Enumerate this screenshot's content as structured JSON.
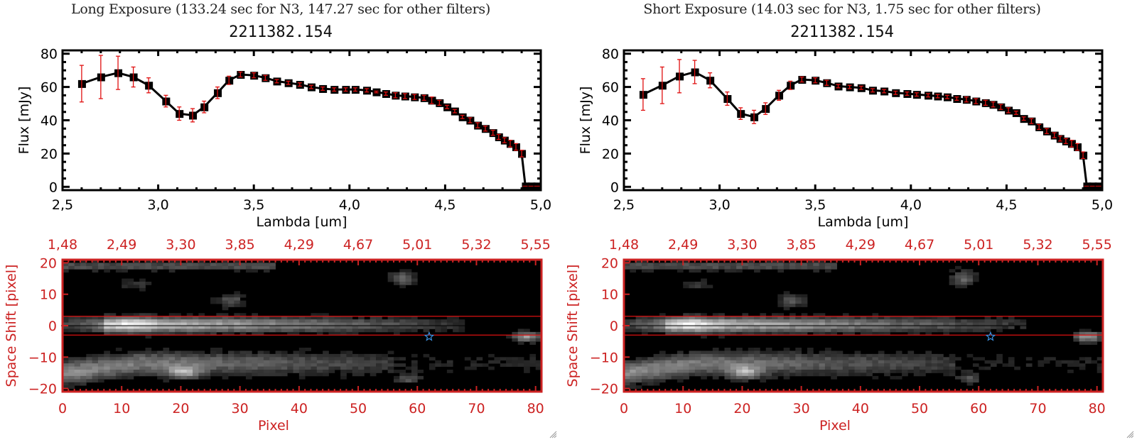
{
  "chart_data": [
    {
      "type": "line",
      "panel": "long",
      "title": "Long Exposure (133.24 sec for N3, 147.27 sec for other filters)",
      "subtitle": "2211382.154",
      "xlabel": "Lambda [um]",
      "ylabel": "Flux [mJy]",
      "xlim": [
        2.5,
        5.0
      ],
      "ylim": [
        -2,
        82
      ],
      "xticks": [
        "2.5",
        "3.0",
        "3.5",
        "4.0",
        "4.5",
        "5.0"
      ],
      "xtick_values": [
        2.5,
        3.0,
        3.5,
        4.0,
        4.5,
        5.0
      ],
      "yticks": [
        "0",
        "20",
        "40",
        "60",
        "80"
      ],
      "ytick_values": [
        0,
        20,
        40,
        60,
        80
      ],
      "series": [
        {
          "name": "flux",
          "x": [
            2.6,
            2.7,
            2.79,
            2.87,
            2.95,
            3.04,
            3.11,
            3.18,
            3.24,
            3.31,
            3.37,
            3.43,
            3.5,
            3.56,
            3.62,
            3.68,
            3.74,
            3.8,
            3.86,
            3.92,
            3.98,
            4.03,
            4.09,
            4.14,
            4.19,
            4.24,
            4.29,
            4.34,
            4.39,
            4.43,
            4.47,
            4.51,
            4.55,
            4.59,
            4.63,
            4.67,
            4.71,
            4.75,
            4.78,
            4.81,
            4.84,
            4.87,
            4.9,
            4.92,
            4.95,
            4.98
          ],
          "y": [
            62,
            66,
            68.5,
            66,
            61,
            51.5,
            44,
            43,
            48,
            56.5,
            64,
            67.5,
            67,
            65.5,
            63.5,
            62.5,
            61.5,
            60,
            59,
            58.5,
            58.5,
            58.5,
            58,
            57,
            56,
            55,
            54.5,
            54,
            53.5,
            52,
            50.5,
            48,
            45.5,
            42,
            40,
            37,
            35,
            32.5,
            30,
            28,
            26,
            24,
            20,
            0,
            0,
            0
          ],
          "yerr": [
            11,
            13,
            10,
            6,
            4.5,
            3.5,
            4,
            4,
            3.5,
            3.5,
            2.5,
            1.5,
            1.5,
            1.5,
            1,
            1,
            1,
            1,
            1,
            1,
            1,
            1,
            1,
            0.5,
            1,
            1.5,
            1.5,
            1.5,
            1.5,
            2,
            1.5,
            1,
            1,
            1,
            1.5,
            1.5,
            1.5,
            1.5,
            1.5,
            1.5,
            2,
            2,
            2,
            0,
            0,
            0
          ]
        }
      ],
      "image": {
        "title_top_ticks": [
          "1.48",
          "2.49",
          "3.30",
          "3.85",
          "4.29",
          "4.67",
          "5.01",
          "5.32",
          "5.55"
        ],
        "xlabel": "Pixel",
        "ylabel": "Space Shift [pixel]",
        "xlim": [
          0,
          81
        ],
        "ylim": [
          -21,
          21
        ],
        "xticks": [
          "0",
          "10",
          "20",
          "30",
          "40",
          "50",
          "60",
          "70",
          "80"
        ],
        "xtick_values": [
          0,
          10,
          20,
          30,
          40,
          50,
          60,
          70,
          80
        ],
        "yticks": [
          "20",
          "10",
          "0",
          "-10",
          "-20"
        ],
        "ytick_values": [
          20,
          10,
          0,
          -10,
          -20
        ],
        "aperture": [
          -3,
          3
        ],
        "star": [
          62,
          -3.5
        ]
      }
    },
    {
      "type": "line",
      "panel": "short",
      "title": "Short Exposure (14.03 sec for N3, 1.75 sec for other filters)",
      "subtitle": "2211382.154",
      "xlabel": "Lambda [um]",
      "ylabel": "Flux [mJy]",
      "xlim": [
        2.5,
        5.0
      ],
      "ylim": [
        -2,
        82
      ],
      "xticks": [
        "2.5",
        "3.0",
        "3.5",
        "4.0",
        "4.5",
        "5.0"
      ],
      "xtick_values": [
        2.5,
        3.0,
        3.5,
        4.0,
        4.5,
        5.0
      ],
      "yticks": [
        "0",
        "20",
        "40",
        "60",
        "80"
      ],
      "ytick_values": [
        0,
        20,
        40,
        60,
        80
      ],
      "series": [
        {
          "name": "flux",
          "x": [
            2.6,
            2.7,
            2.79,
            2.87,
            2.95,
            3.04,
            3.11,
            3.18,
            3.24,
            3.31,
            3.37,
            3.43,
            3.5,
            3.56,
            3.62,
            3.68,
            3.74,
            3.8,
            3.86,
            3.92,
            3.98,
            4.03,
            4.09,
            4.14,
            4.19,
            4.24,
            4.29,
            4.34,
            4.39,
            4.43,
            4.47,
            4.51,
            4.55,
            4.59,
            4.63,
            4.67,
            4.71,
            4.75,
            4.78,
            4.81,
            4.84,
            4.87,
            4.9,
            4.92,
            4.95,
            4.98
          ],
          "y": [
            55.5,
            61,
            66.5,
            69,
            64,
            53,
            44,
            42,
            47,
            55,
            61,
            64.5,
            64,
            62.5,
            60.5,
            60,
            59.5,
            58,
            57.5,
            56.5,
            56,
            55.5,
            55,
            54.5,
            54,
            53,
            52.5,
            51.5,
            50.5,
            49.5,
            48,
            46,
            44.5,
            41,
            39.5,
            36,
            33.5,
            31,
            29,
            27.5,
            26,
            24,
            19,
            0,
            0,
            0
          ],
          "yerr": [
            9.5,
            11,
            10,
            7,
            4.5,
            4,
            3.5,
            4,
            3.5,
            3,
            2.5,
            1.5,
            1.5,
            1.5,
            1,
            1,
            1,
            1,
            1,
            1,
            1,
            1,
            1,
            1,
            1,
            1,
            1.5,
            1.5,
            1.5,
            1.5,
            1.5,
            1.5,
            1,
            1,
            1.5,
            1.5,
            1.5,
            1.5,
            1.5,
            1.5,
            2,
            2,
            2,
            0,
            0,
            0
          ]
        }
      ],
      "image": {
        "title_top_ticks": [
          "1.48",
          "2.49",
          "3.30",
          "3.85",
          "4.29",
          "4.67",
          "5.01",
          "5.32",
          "5.55"
        ],
        "xlabel": "Pixel",
        "ylabel": "Space Shift [pixel]",
        "xlim": [
          0,
          81
        ],
        "ylim": [
          -21,
          21
        ],
        "xticks": [
          "0",
          "10",
          "20",
          "30",
          "40",
          "50",
          "60",
          "70",
          "80"
        ],
        "xtick_values": [
          0,
          10,
          20,
          30,
          40,
          50,
          60,
          70,
          80
        ],
        "yticks": [
          "20",
          "10",
          "0",
          "-10",
          "-20"
        ],
        "ytick_values": [
          20,
          10,
          0,
          -10,
          -20
        ],
        "aperture": [
          -3,
          3
        ],
        "star": [
          62,
          -3.5
        ]
      }
    }
  ],
  "colors": {
    "axis_red": "#cc2222",
    "errbar_red": "#e01010",
    "line_black": "#000000",
    "star_blue": "#3a8fe0"
  }
}
